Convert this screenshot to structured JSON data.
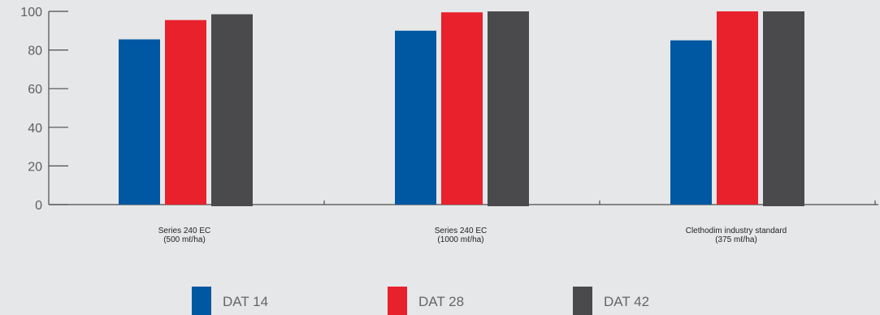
{
  "chart_data": {
    "type": "bar",
    "categories": [
      [
        "Series 240 EC",
        "(500 mℓ/ha)"
      ],
      [
        "Series 240 EC",
        "(1000 mℓ/ha)"
      ],
      [
        "Clethodim industry standard",
        "(375 mℓ/ha)"
      ]
    ],
    "series": [
      {
        "name": "DAT 14",
        "color": "#0058a3",
        "values": [
          85.5,
          90,
          85
        ]
      },
      {
        "name": "DAT 28",
        "color": "#e8212d",
        "values": [
          95.5,
          99.5,
          100
        ]
      },
      {
        "name": "DAT 42",
        "color": "#4a4a4c",
        "values": [
          98.5,
          100,
          100
        ]
      }
    ],
    "y_ticks": [
      "0",
      "20",
      "40",
      "60",
      "80",
      "100"
    ],
    "ylim": [
      0,
      100
    ],
    "legend_position": "bottom",
    "grid": false,
    "axis_color": "#4d4d4d"
  }
}
